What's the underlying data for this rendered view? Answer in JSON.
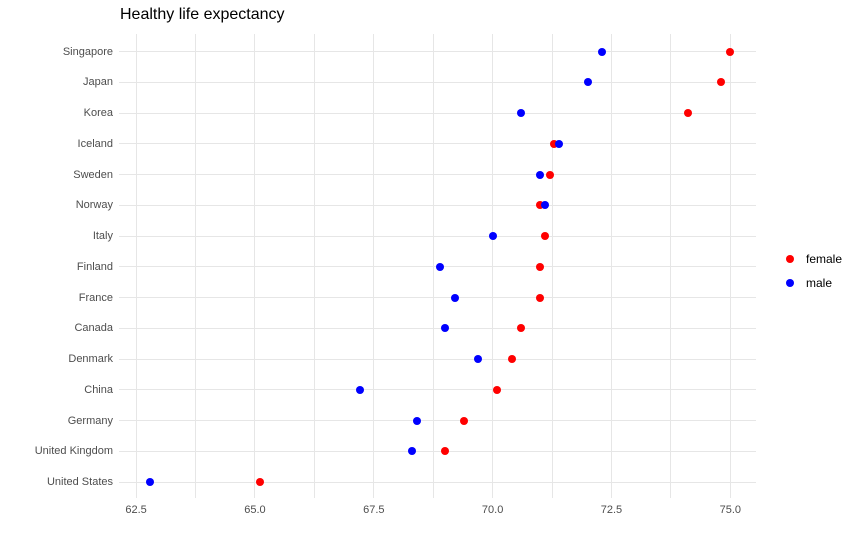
{
  "title": "Healthy life expectancy",
  "legend": {
    "items": [
      {
        "label": "female",
        "color": "#ff0000"
      },
      {
        "label": "male",
        "color": "#0000ff"
      }
    ]
  },
  "colors": {
    "female": "#ff0000",
    "male": "#0000ff",
    "gridline": "#e6e6e6",
    "axis_text": "#4d4d4d",
    "title_text": "#000000",
    "background": "#ffffff"
  },
  "chart_data": {
    "type": "scatter",
    "subtype": "cleveland-dot-plot",
    "title": "Healthy life expectancy",
    "xlabel": "",
    "ylabel": "",
    "grid": "on",
    "legend_position": "right",
    "categories": [
      "Singapore",
      "Japan",
      "Korea",
      "Iceland",
      "Sweden",
      "Norway",
      "Italy",
      "Finland",
      "France",
      "Canada",
      "Denmark",
      "China",
      "Germany",
      "United Kingdom",
      "United States"
    ],
    "series": [
      {
        "name": "female",
        "color": "#ff0000",
        "values": [
          75.0,
          74.8,
          74.1,
          71.3,
          71.2,
          71.0,
          71.1,
          71.0,
          71.0,
          70.6,
          70.4,
          70.1,
          69.4,
          69.0,
          65.1
        ]
      },
      {
        "name": "male",
        "color": "#0000ff",
        "values": [
          72.3,
          72.0,
          70.6,
          71.4,
          71.0,
          71.1,
          70.0,
          68.9,
          69.2,
          69.0,
          69.7,
          67.2,
          68.4,
          68.3,
          62.8
        ]
      }
    ],
    "xlim": [
      62.14,
      75.54
    ],
    "xticks_major": [
      62.5,
      65.0,
      67.5,
      70.0,
      72.5,
      75.0
    ],
    "xtick_labels": [
      "62.5",
      "65.0",
      "67.5",
      "70.0",
      "72.5",
      "75.0"
    ],
    "xticks_minor": [
      63.75,
      66.25,
      68.75,
      71.25,
      73.75
    ]
  }
}
